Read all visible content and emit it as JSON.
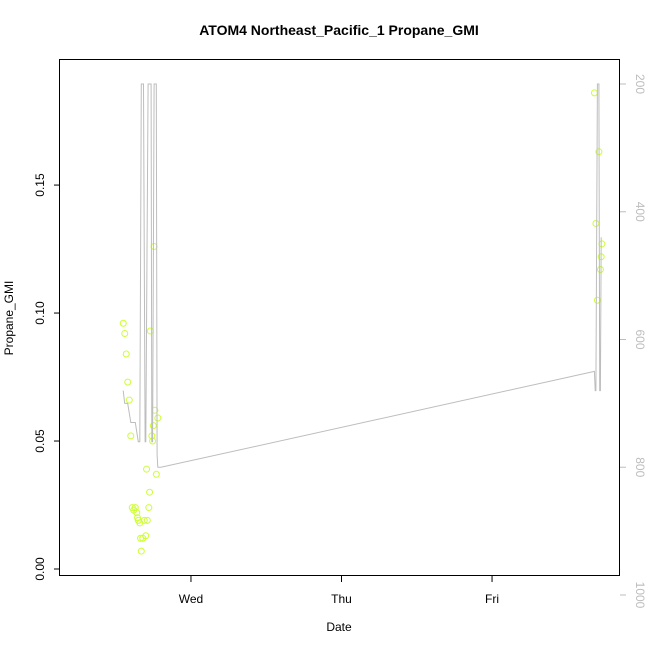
{
  "chart_data": {
    "type": "scatter",
    "title": "ATOM4 Northeast_Pacific_1 Propane_GMI",
    "xlabel": "Date",
    "ylabel": "Propane_GMI",
    "x_tick_labels": [
      "Wed",
      "Thu",
      "Fri"
    ],
    "y_ticks": [
      0.0,
      0.05,
      0.1,
      0.15
    ],
    "y_tick_labels": [
      "0.00",
      "0.05",
      "0.10",
      "0.15"
    ],
    "ylim": [
      0.0,
      0.193
    ],
    "right_axis": {
      "ticks": [
        200,
        400,
        600,
        800,
        1000
      ],
      "tick_labels": [
        "200",
        "400",
        "600",
        "800",
        "1000"
      ],
      "reversed": true,
      "lim": [
        1000,
        200
      ]
    },
    "series": [
      {
        "kind": "points",
        "color": "#ccff33",
        "points": [
          {
            "x": 0.55,
            "y": 0.096
          },
          {
            "x": 0.56,
            "y": 0.092
          },
          {
            "x": 0.57,
            "y": 0.084
          },
          {
            "x": 0.58,
            "y": 0.073
          },
          {
            "x": 0.59,
            "y": 0.066
          },
          {
            "x": 0.6,
            "y": 0.052
          },
          {
            "x": 0.61,
            "y": 0.024
          },
          {
            "x": 0.62,
            "y": 0.023
          },
          {
            "x": 0.63,
            "y": 0.024
          },
          {
            "x": 0.64,
            "y": 0.022
          },
          {
            "x": 0.645,
            "y": 0.02
          },
          {
            "x": 0.65,
            "y": 0.019
          },
          {
            "x": 0.66,
            "y": 0.018
          },
          {
            "x": 0.665,
            "y": 0.012
          },
          {
            "x": 0.67,
            "y": 0.007
          },
          {
            "x": 0.68,
            "y": 0.012
          },
          {
            "x": 0.69,
            "y": 0.019
          },
          {
            "x": 0.7,
            "y": 0.013
          },
          {
            "x": 0.705,
            "y": 0.039
          },
          {
            "x": 0.71,
            "y": 0.019
          },
          {
            "x": 0.72,
            "y": 0.024
          },
          {
            "x": 0.725,
            "y": 0.03
          },
          {
            "x": 0.73,
            "y": 0.093
          },
          {
            "x": 0.74,
            "y": 0.052
          },
          {
            "x": 0.745,
            "y": 0.05
          },
          {
            "x": 0.75,
            "y": 0.056
          },
          {
            "x": 0.755,
            "y": 0.126
          },
          {
            "x": 0.76,
            "y": 0.062
          },
          {
            "x": 0.77,
            "y": 0.037
          },
          {
            "x": 0.78,
            "y": 0.059
          },
          {
            "x": 3.68,
            "y": 0.186
          },
          {
            "x": 3.69,
            "y": 0.135
          },
          {
            "x": 3.7,
            "y": 0.105
          },
          {
            "x": 3.71,
            "y": 0.163
          },
          {
            "x": 3.72,
            "y": 0.117
          },
          {
            "x": 3.725,
            "y": 0.122
          },
          {
            "x": 3.73,
            "y": 0.127
          }
        ]
      },
      {
        "kind": "line",
        "axis": "right",
        "color": "#bdbdbd",
        "points": [
          {
            "x": 0.55,
            "y": 680
          },
          {
            "x": 0.56,
            "y": 700
          },
          {
            "x": 0.58,
            "y": 700
          },
          {
            "x": 0.6,
            "y": 730
          },
          {
            "x": 0.63,
            "y": 730
          },
          {
            "x": 0.65,
            "y": 760
          },
          {
            "x": 0.66,
            "y": 760
          },
          {
            "x": 0.67,
            "y": 200
          },
          {
            "x": 0.685,
            "y": 200
          },
          {
            "x": 0.695,
            "y": 760
          },
          {
            "x": 0.7,
            "y": 760
          },
          {
            "x": 0.715,
            "y": 200
          },
          {
            "x": 0.735,
            "y": 200
          },
          {
            "x": 0.74,
            "y": 760
          },
          {
            "x": 0.745,
            "y": 760
          },
          {
            "x": 0.755,
            "y": 200
          },
          {
            "x": 0.77,
            "y": 200
          },
          {
            "x": 0.775,
            "y": 780
          },
          {
            "x": 0.78,
            "y": 800
          },
          {
            "x": 0.8,
            "y": 800
          },
          {
            "x": 3.68,
            "y": 650
          },
          {
            "x": 3.685,
            "y": 680
          },
          {
            "x": 3.69,
            "y": 680
          },
          {
            "x": 3.7,
            "y": 200
          },
          {
            "x": 3.71,
            "y": 200
          },
          {
            "x": 3.715,
            "y": 680
          },
          {
            "x": 3.72,
            "y": 680
          },
          {
            "x": 3.725,
            "y": 440
          }
        ]
      }
    ]
  }
}
